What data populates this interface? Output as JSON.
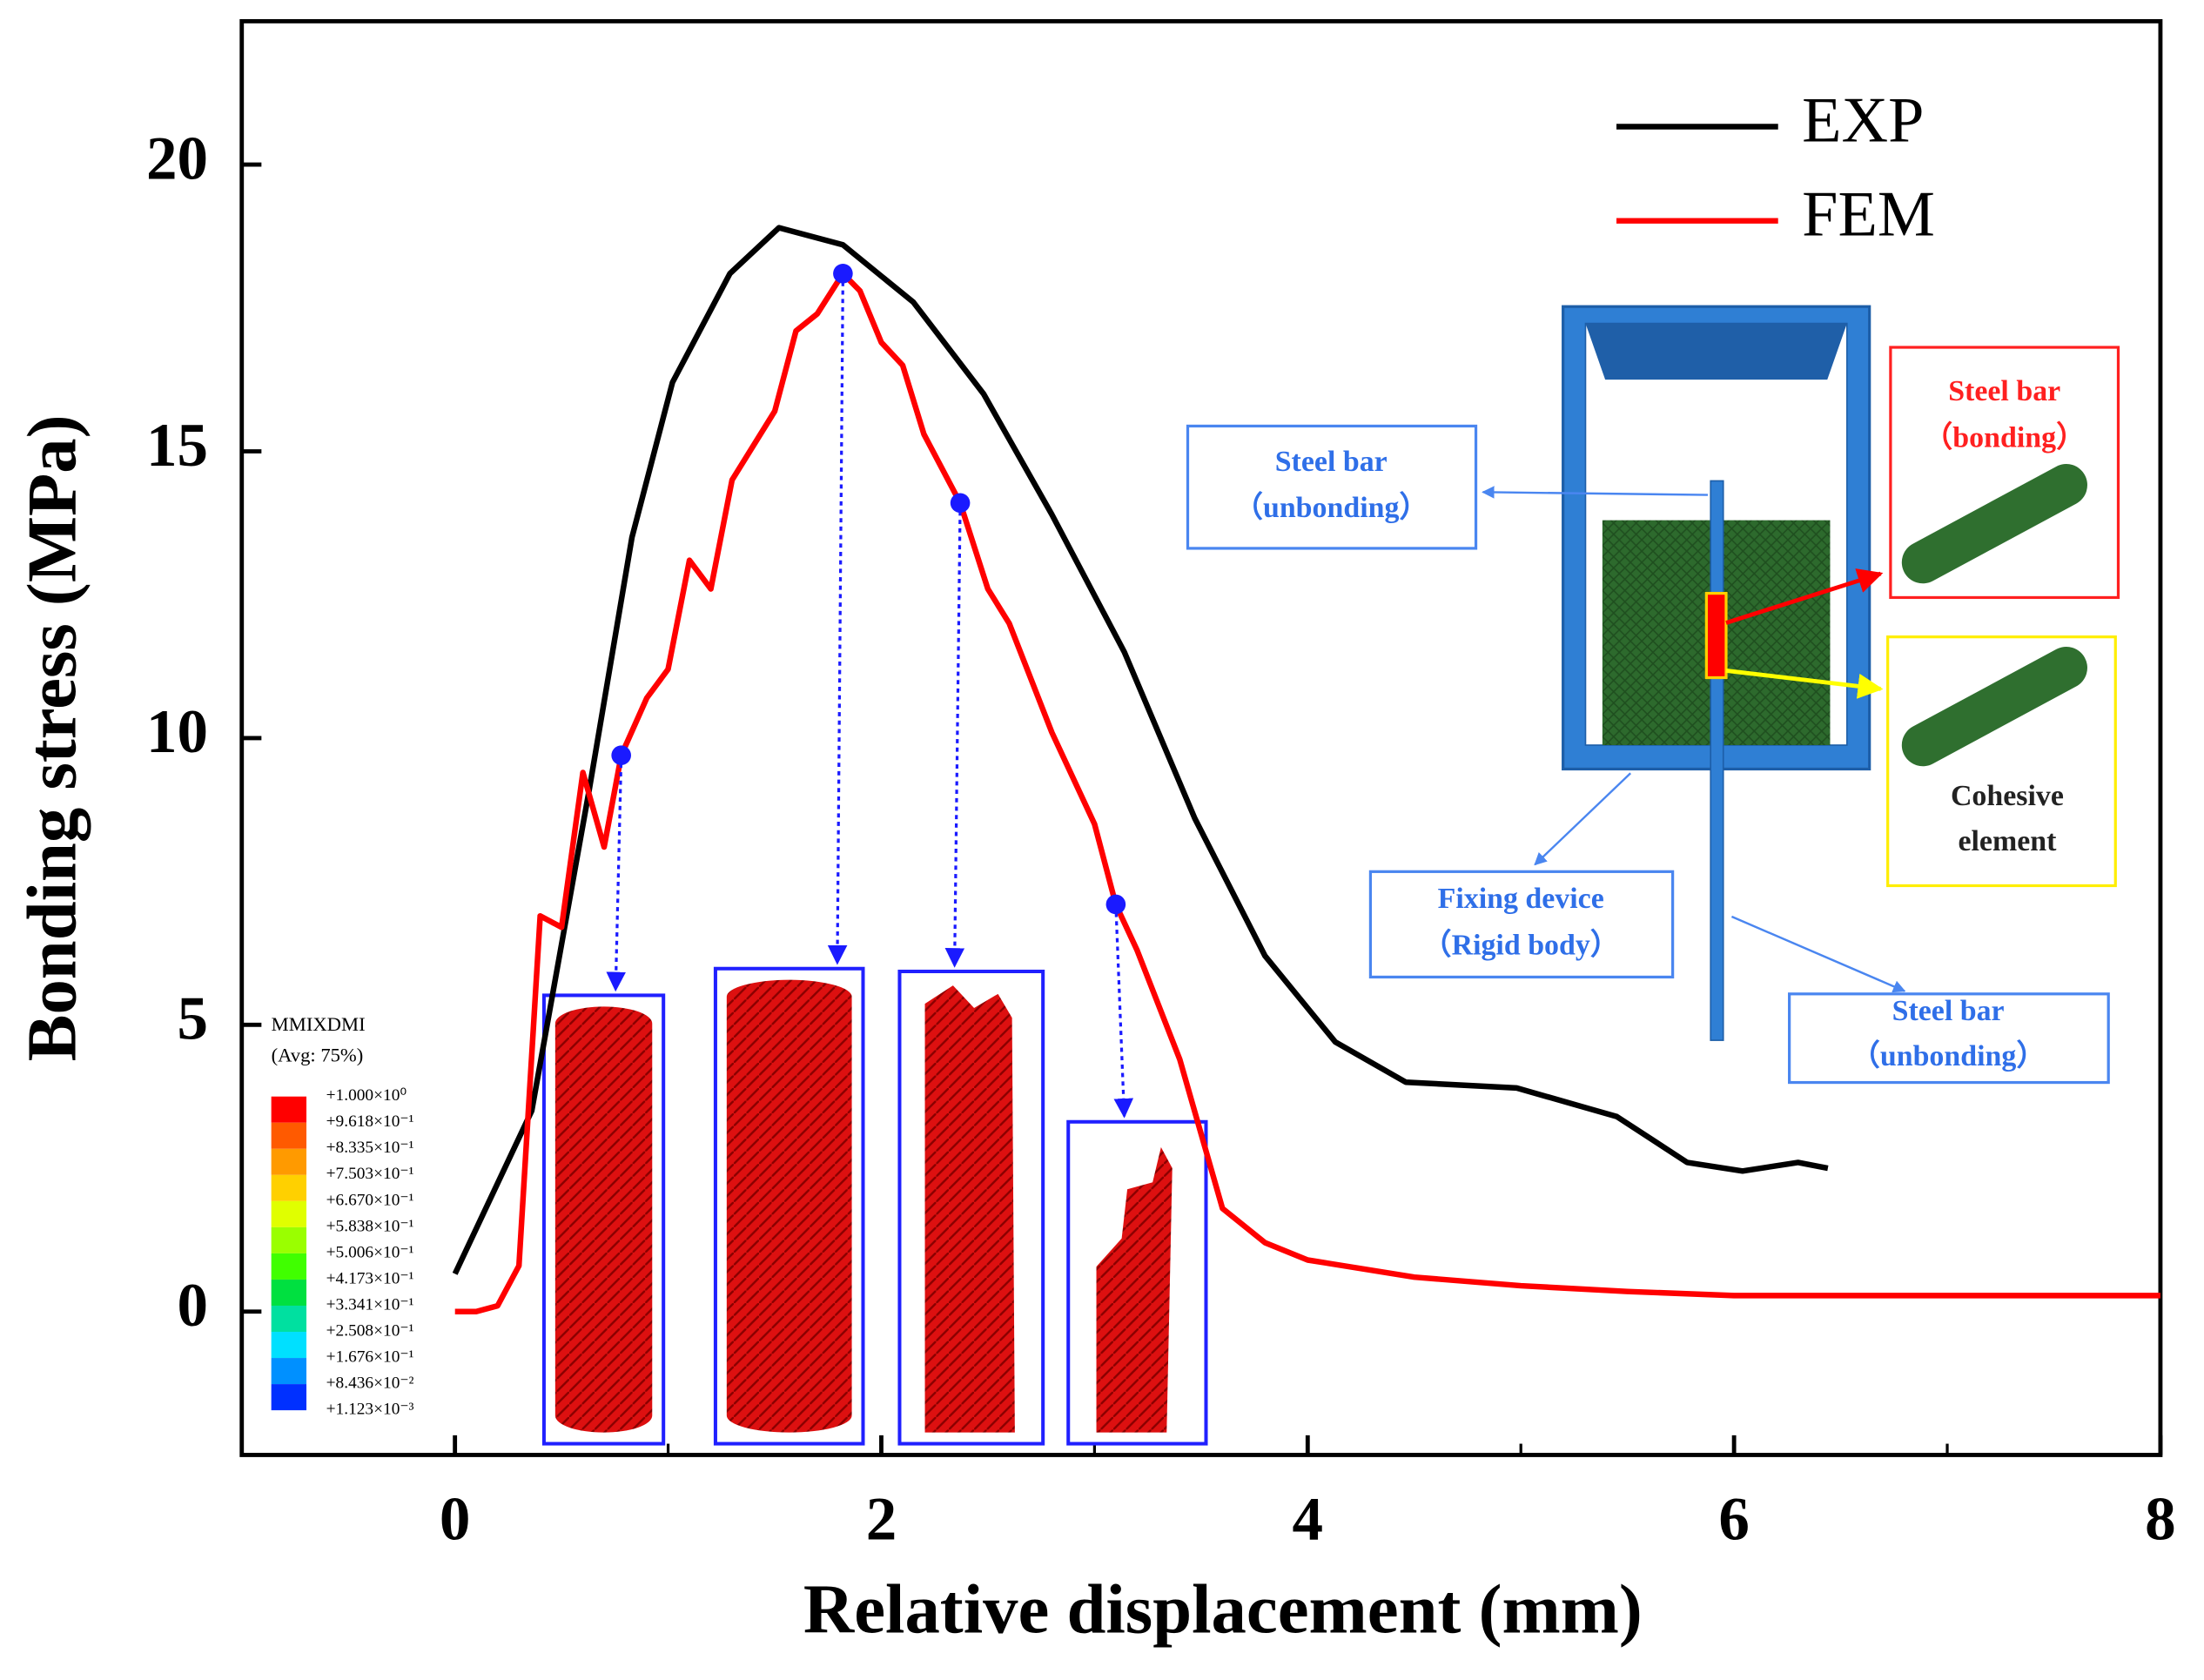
{
  "chart_data": {
    "type": "line",
    "x_label": "Relative displacement (mm)",
    "y_label": "Bonding stress (MPa)",
    "xlim": [
      -1,
      8
    ],
    "ylim": [
      -2.5,
      22.5
    ],
    "xticks": [
      0,
      2,
      4,
      6,
      8
    ],
    "xminorticks": [
      1,
      3,
      5,
      7
    ],
    "yticks": [
      0,
      5,
      10,
      15,
      20
    ],
    "legend": "upper right",
    "series": [
      {
        "name": "EXP",
        "color": "#000000",
        "x": [
          0,
          0.36,
          0.63,
          0.83,
          1.02,
          1.29,
          1.52,
          1.82,
          2.15,
          2.48,
          2.8,
          3.14,
          3.47,
          3.8,
          4.13,
          4.46,
          4.98,
          5.45,
          5.78,
          6.04,
          6.3,
          6.44
        ],
        "values": [
          0.66,
          3.5,
          9.1,
          13.5,
          16.2,
          18.1,
          18.9,
          18.6,
          17.6,
          16,
          13.9,
          11.5,
          8.6,
          6.2,
          4.7,
          4.0,
          3.9,
          3.4,
          2.6,
          2.45,
          2.6,
          2.5
        ]
      },
      {
        "name": "FEM",
        "color": "#ff0000",
        "x": [
          0,
          0.1,
          0.2,
          0.3,
          0.4,
          0.5,
          0.6,
          0.7,
          0.78,
          0.9,
          1.0,
          1.1,
          1.2,
          1.3,
          1.5,
          1.6,
          1.7,
          1.82,
          1.9,
          2.0,
          2.1,
          2.2,
          2.37,
          2.5,
          2.6,
          2.8,
          3.0,
          3.1,
          3.2,
          3.4,
          3.6,
          3.8,
          4.0,
          4.5,
          5,
          5.5,
          6,
          7,
          8
        ],
        "values": [
          0,
          0,
          0.1,
          0.8,
          6.9,
          6.7,
          9.4,
          8.1,
          9.7,
          10.7,
          11.2,
          13.1,
          12.6,
          14.5,
          15.7,
          17.1,
          17.4,
          18.1,
          17.8,
          16.9,
          16.5,
          15.3,
          14.1,
          12.6,
          12.0,
          10.1,
          8.5,
          7.1,
          6.3,
          4.4,
          1.8,
          1.2,
          0.9,
          0.6,
          0.45,
          0.35,
          0.28,
          0.28,
          0.28
        ]
      }
    ],
    "markers": {
      "color": "#1a1aff",
      "x": [
        0.78,
        1.82,
        2.37,
        3.1
      ],
      "values": [
        9.7,
        18.1,
        14.1,
        7.1
      ]
    },
    "colorbar": {
      "title": "MMIXDMI",
      "subtitle": "(Avg: 75%)",
      "labels": [
        "+1.000×10⁰",
        "+9.618×10⁻¹",
        "+8.335×10⁻¹",
        "+7.503×10⁻¹",
        "+6.670×10⁻¹",
        "+5.838×10⁻¹",
        "+5.006×10⁻¹",
        "+4.173×10⁻¹",
        "+3.341×10⁻¹",
        "+2.508×10⁻¹",
        "+1.676×10⁻¹",
        "+8.436×10⁻²",
        "+1.123×10⁻³"
      ],
      "colors": [
        "#ff0000",
        "#ff5a00",
        "#ff9a00",
        "#ffd000",
        "#e0ff00",
        "#9aff00",
        "#40ff00",
        "#00e040",
        "#00e0a0",
        "#00e0ff",
        "#0090ff",
        "#0030ff"
      ]
    },
    "diagram": {
      "labels": [
        {
          "lines": [
            "Steel bar",
            "（unbonding）"
          ],
          "color": "#2f6fe8"
        },
        {
          "lines": [
            "Steel bar",
            "（bonding）"
          ],
          "color": "#ff2020"
        },
        {
          "lines": [
            "Cohesive",
            "element"
          ],
          "color": "#222222"
        },
        {
          "lines": [
            "Fixing device",
            "（Rigid body）"
          ],
          "color": "#2f6fe8"
        },
        {
          "lines": [
            "Steel bar",
            "（unbonding）"
          ],
          "color": "#2f6fe8"
        }
      ]
    }
  }
}
